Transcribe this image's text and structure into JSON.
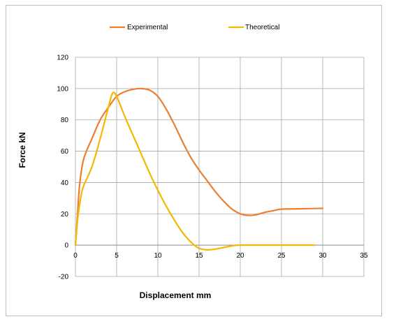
{
  "chart_data": {
    "type": "line",
    "title": "",
    "xlabel": "Displacement mm",
    "ylabel": "Force kN",
    "xlim": [
      0,
      35
    ],
    "ylim": [
      -20,
      120
    ],
    "x_ticks": [
      0,
      5,
      10,
      15,
      20,
      25,
      30,
      35
    ],
    "y_ticks": [
      -20,
      0,
      20,
      40,
      60,
      80,
      100,
      120
    ],
    "grid": true,
    "legend_position": "top",
    "series": [
      {
        "name": "Experimental",
        "color": "#ED7D31",
        "x": [
          0,
          0.2,
          0.5,
          1,
          2,
          3,
          4,
          5,
          6,
          7,
          8,
          9,
          10,
          11,
          12,
          13,
          14,
          15,
          16,
          17,
          18,
          19,
          20,
          21,
          22,
          23,
          24,
          25,
          27,
          30
        ],
        "y": [
          0,
          15,
          38,
          55,
          68,
          80,
          88,
          95,
          98,
          99.5,
          100,
          99,
          95,
          87,
          77,
          66,
          56,
          48,
          41,
          34,
          28,
          23,
          20,
          19,
          19.5,
          21,
          22,
          23,
          23.2,
          23.5
        ]
      },
      {
        "name": "Theoretical",
        "color": "#F5B800",
        "x": [
          0,
          0.3,
          0.7,
          1,
          2,
          3,
          4,
          4.5,
          5,
          6,
          7,
          8,
          9,
          10,
          11,
          12,
          13,
          14,
          15,
          16,
          17,
          18,
          19,
          20,
          25,
          29
        ],
        "y": [
          0,
          18,
          32,
          38,
          50,
          68,
          88,
          97,
          95,
          82,
          70,
          58,
          46,
          35,
          25,
          16,
          8,
          2,
          -2,
          -3,
          -2.5,
          -1.5,
          -0.5,
          0,
          0,
          0
        ]
      }
    ]
  }
}
